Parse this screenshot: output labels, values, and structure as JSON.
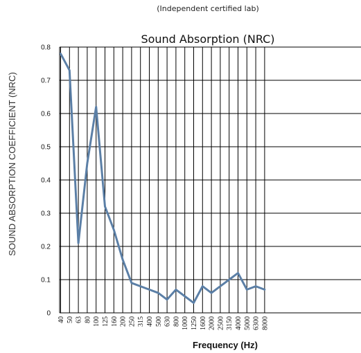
{
  "chart_data": {
    "type": "line",
    "subtitle": "(Independent certified lab)",
    "title": "Sound Absorption (NRC)",
    "xlabel": "Frequency (Hz)",
    "ylabel": "SOUND ABSORPTION COEFFICIENT (NRC)",
    "ylim": [
      0,
      0.8
    ],
    "y_ticks": [
      "0",
      "0.1",
      "0.2",
      "0.3",
      "0.4",
      "0.5",
      "0.6",
      "0.7",
      "0.8"
    ],
    "grid": true,
    "categories": [
      "40",
      "50",
      "63",
      "80",
      "100",
      "125",
      "160",
      "200",
      "250",
      "315",
      "400",
      "500",
      "630",
      "800",
      "1000",
      "1250",
      "1600",
      "2000",
      "2500",
      "3150",
      "4000",
      "5000",
      "6300",
      "8000"
    ],
    "series": [
      {
        "values": [
          0.78,
          0.73,
          0.21,
          0.45,
          0.62,
          0.32,
          0.25,
          0.16,
          0.09,
          0.08,
          0.07,
          0.06,
          0.04,
          0.07,
          0.05,
          0.03,
          0.08,
          0.06,
          0.08,
          0.1,
          0.12,
          0.07,
          0.08,
          0.07
        ]
      }
    ],
    "colors": {
      "line": "#5b7fa6",
      "grid": "#000000"
    }
  }
}
